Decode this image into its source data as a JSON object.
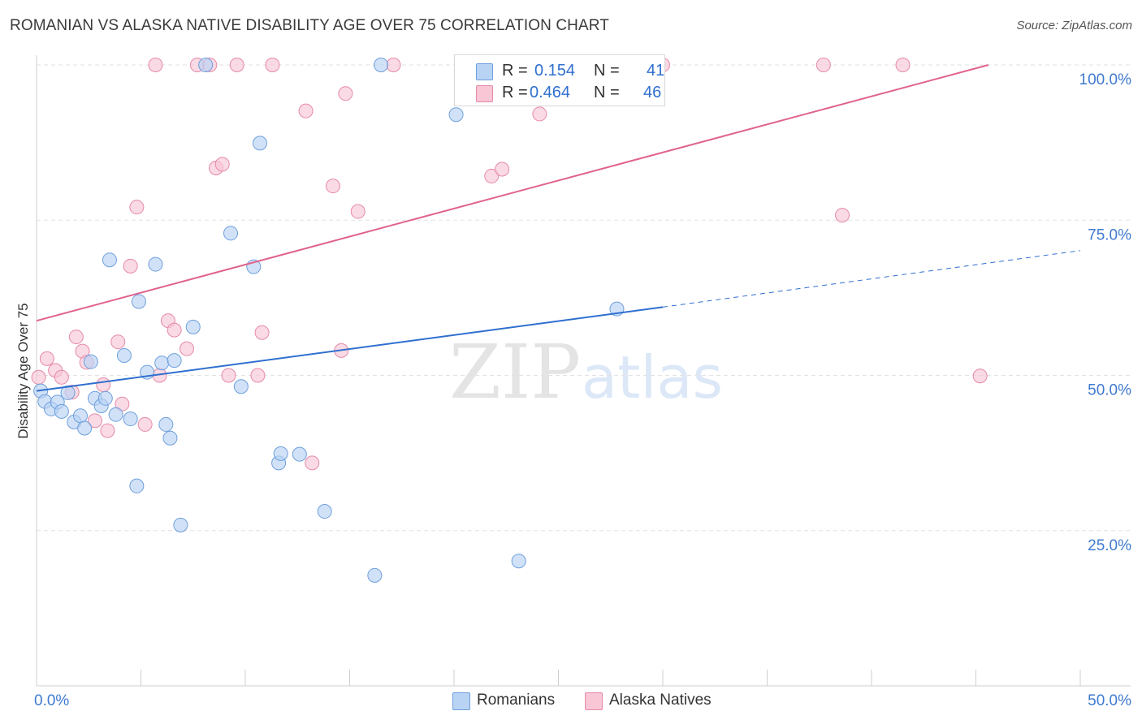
{
  "header": {
    "title": "ROMANIAN VS ALASKA NATIVE DISABILITY AGE OVER 75 CORRELATION CHART",
    "source": "Source: ZipAtlas.com"
  },
  "legend": {
    "r_label": "R =",
    "n_label": "N =",
    "rows": [
      {
        "r": "0.154",
        "n": "41"
      },
      {
        "r": "0.464",
        "n": "46"
      }
    ]
  },
  "colors": {
    "romanians_fill": "#b8d3f4",
    "romanians_stroke": "#6f9fdc",
    "romanians_line": "#2f6fcf",
    "alaska_fill": "#f8c6d5",
    "alaska_stroke": "#e58aa8",
    "alaska_line": "#e0638b",
    "axis_text": "#3f7ad0",
    "watermark": "#e4e4e4"
  },
  "watermark": {
    "zip": "ZIP",
    "atlas": "atlas"
  },
  "chart_data": {
    "type": "scatter",
    "ylabel": "Disability Age Over 75",
    "xlabel": "",
    "xlim": [
      0,
      50
    ],
    "ylim": [
      0,
      100
    ],
    "x_tick_labels": [
      "0.0%",
      "50.0%"
    ],
    "y_ticks": [
      25,
      50,
      75,
      100
    ],
    "y_tick_labels": [
      "25.0%",
      "50.0%",
      "75.0%",
      "100.0%"
    ],
    "grid": true,
    "legend_position": "bottom",
    "series": [
      {
        "name": "Romanians",
        "trend": {
          "x0": 0,
          "y0": 47.5,
          "x1": 30,
          "y1": 61.0,
          "dashed_to_x": 50,
          "dashed_to_y": 70.1
        },
        "points": [
          [
            0.2,
            47.5
          ],
          [
            0.4,
            45.8
          ],
          [
            0.7,
            44.6
          ],
          [
            1.0,
            45.7
          ],
          [
            1.2,
            44.2
          ],
          [
            1.5,
            47.2
          ],
          [
            1.8,
            42.5
          ],
          [
            2.1,
            43.5
          ],
          [
            2.3,
            41.5
          ],
          [
            2.6,
            52.2
          ],
          [
            2.8,
            46.3
          ],
          [
            3.1,
            45.1
          ],
          [
            3.3,
            46.3
          ],
          [
            3.5,
            68.6
          ],
          [
            3.8,
            43.7
          ],
          [
            4.2,
            53.2
          ],
          [
            4.5,
            43.0
          ],
          [
            4.8,
            32.2
          ],
          [
            4.9,
            61.9
          ],
          [
            5.3,
            50.5
          ],
          [
            5.7,
            67.9
          ],
          [
            6.0,
            52.0
          ],
          [
            6.2,
            42.1
          ],
          [
            6.4,
            39.9
          ],
          [
            6.6,
            52.4
          ],
          [
            6.9,
            25.9
          ],
          [
            7.5,
            57.8
          ],
          [
            8.1,
            100.0
          ],
          [
            9.3,
            72.9
          ],
          [
            9.8,
            48.2
          ],
          [
            10.4,
            67.5
          ],
          [
            10.7,
            87.4
          ],
          [
            11.6,
            35.9
          ],
          [
            11.7,
            37.4
          ],
          [
            12.6,
            37.3
          ],
          [
            13.8,
            28.1
          ],
          [
            16.2,
            17.8
          ],
          [
            16.5,
            100.0
          ],
          [
            20.1,
            92.0
          ],
          [
            23.1,
            20.1
          ],
          [
            27.8,
            60.7
          ]
        ]
      },
      {
        "name": "Alaska Natives",
        "trend": {
          "x0": 0,
          "y0": 58.8,
          "x1": 45.6,
          "y1": 100.0
        },
        "points": [
          [
            0.1,
            49.7
          ],
          [
            0.5,
            52.7
          ],
          [
            0.9,
            50.8
          ],
          [
            1.2,
            49.7
          ],
          [
            1.7,
            47.3
          ],
          [
            1.9,
            56.2
          ],
          [
            2.2,
            53.9
          ],
          [
            2.4,
            52.1
          ],
          [
            2.8,
            42.7
          ],
          [
            3.2,
            48.5
          ],
          [
            3.4,
            41.1
          ],
          [
            3.9,
            55.4
          ],
          [
            4.1,
            45.4
          ],
          [
            4.5,
            67.6
          ],
          [
            4.8,
            77.1
          ],
          [
            5.2,
            42.1
          ],
          [
            5.7,
            100.0
          ],
          [
            5.9,
            50.0
          ],
          [
            6.3,
            58.8
          ],
          [
            6.6,
            57.3
          ],
          [
            7.2,
            54.3
          ],
          [
            7.7,
            100.0
          ],
          [
            8.3,
            100.0
          ],
          [
            8.6,
            83.4
          ],
          [
            8.9,
            84.0
          ],
          [
            9.2,
            50.0
          ],
          [
            9.6,
            100.0
          ],
          [
            10.6,
            50.0
          ],
          [
            10.8,
            56.9
          ],
          [
            11.3,
            100.0
          ],
          [
            12.9,
            92.6
          ],
          [
            13.2,
            35.9
          ],
          [
            14.2,
            80.5
          ],
          [
            14.6,
            54.0
          ],
          [
            14.8,
            95.4
          ],
          [
            15.4,
            76.4
          ],
          [
            17.1,
            100.0
          ],
          [
            20.7,
            100.0
          ],
          [
            21.8,
            82.1
          ],
          [
            22.3,
            83.2
          ],
          [
            24.1,
            92.1
          ],
          [
            30.0,
            100.0
          ],
          [
            37.7,
            100.0
          ],
          [
            38.6,
            75.8
          ],
          [
            41.5,
            100.0
          ],
          [
            45.2,
            49.9
          ]
        ]
      }
    ]
  }
}
